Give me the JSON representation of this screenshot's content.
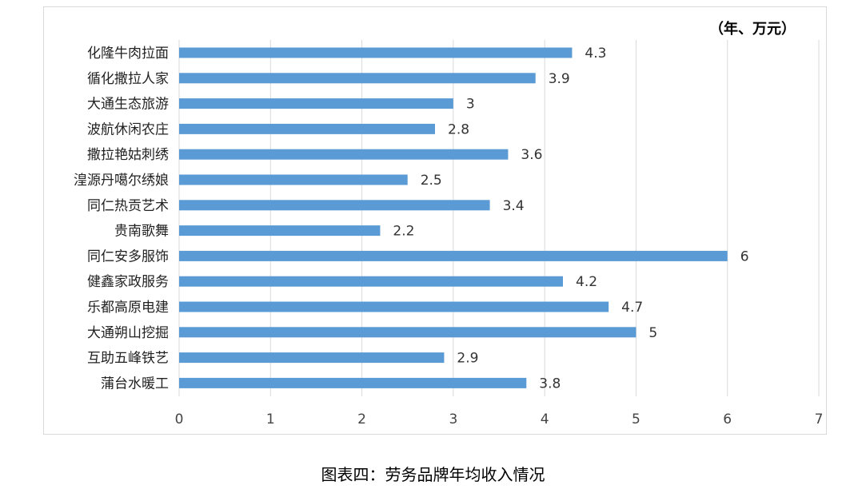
{
  "chart_data": {
    "type": "bar",
    "orientation": "horizontal",
    "unit_label": "（年、万元）",
    "categories": [
      "化隆牛肉拉面",
      "循化撒拉人家",
      "大通生态旅游",
      "波航休闲农庄",
      "撒拉艳姑刺绣",
      "湟源丹噶尔绣娘",
      "同仁热贡艺术",
      "贵南歌舞",
      "同仁安多服饰",
      "健鑫家政服务",
      "乐都高原电建",
      "大通朔山挖掘",
      "互助五峰铁艺",
      "蒲台水暖工"
    ],
    "values": [
      4.3,
      3.9,
      3,
      2.8,
      3.6,
      2.5,
      3.4,
      2.2,
      6,
      4.2,
      4.7,
      5,
      2.9,
      3.8
    ],
    "value_labels": [
      "4.3",
      "3.9",
      "3",
      "2.8",
      "3.6",
      "2.5",
      "3.4",
      "2.2",
      "6",
      "4.2",
      "4.7",
      "5",
      "2.9",
      "3.8"
    ],
    "xticks": [
      "0",
      "1",
      "2",
      "3",
      "4",
      "5",
      "6",
      "7"
    ],
    "xlim": [
      0,
      7
    ],
    "grid": "vertical",
    "legend": "none",
    "bar_color": "#5b9bd5",
    "grid_color": "#d9d9d9"
  },
  "caption": "图表四：劳务品牌年均收入情况"
}
